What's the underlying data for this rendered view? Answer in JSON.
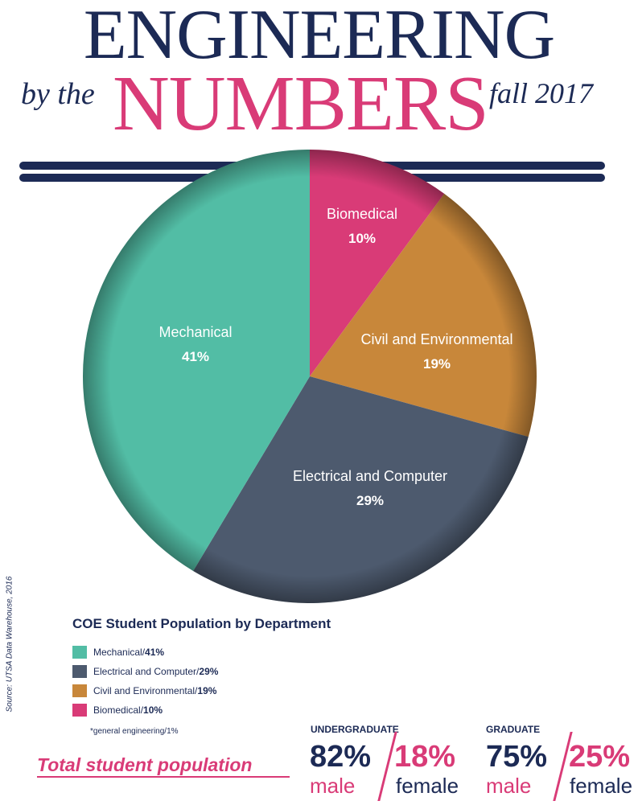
{
  "header": {
    "title": "ENGINEERING",
    "by_the": "by the",
    "numbers": "NUMBERS",
    "term": "fall 2017"
  },
  "colors": {
    "navy": "#1c2a55",
    "pink": "#d93b77",
    "mechanical": "#52bda5",
    "electrical": "#4d5a6e",
    "civil": "#c8873a",
    "biomedical": "#d93b77"
  },
  "chart_data": {
    "type": "pie",
    "title": "COE Student Population by Department",
    "slices": [
      {
        "label": "Biomedical",
        "value": 10,
        "value_label": "10%",
        "legend": "Biomedical/",
        "legend_pct": "10%",
        "color": "#d93b77"
      },
      {
        "label": "Civil and Environmental",
        "value": 19,
        "value_label": "19%",
        "legend": "Civil and Environmental/",
        "legend_pct": "19%",
        "color": "#c8873a"
      },
      {
        "label": "Electrical and Computer",
        "value": 29,
        "value_label": "29%",
        "legend": "Electrical and Computer/",
        "legend_pct": "29%",
        "color": "#4d5a6e"
      },
      {
        "label": "Mechanical",
        "value": 41,
        "value_label": "41%",
        "legend": "Mechanical/",
        "legend_pct": "41%",
        "color": "#52bda5"
      }
    ],
    "note": "*general engineering/1%",
    "legend_placement": "bottom-left"
  },
  "source": "Source: UTSA Data Warehouse, 2016",
  "population": {
    "label": "Total student population",
    "undergraduate": {
      "heading": "UNDERGRADUATE",
      "male_pct": "82%",
      "male_label": "male",
      "female_pct": "18%",
      "female_label": "female"
    },
    "graduate": {
      "heading": "GRADUATE",
      "male_pct": "75%",
      "male_label": "male",
      "female_pct": "25%",
      "female_label": "female"
    }
  }
}
